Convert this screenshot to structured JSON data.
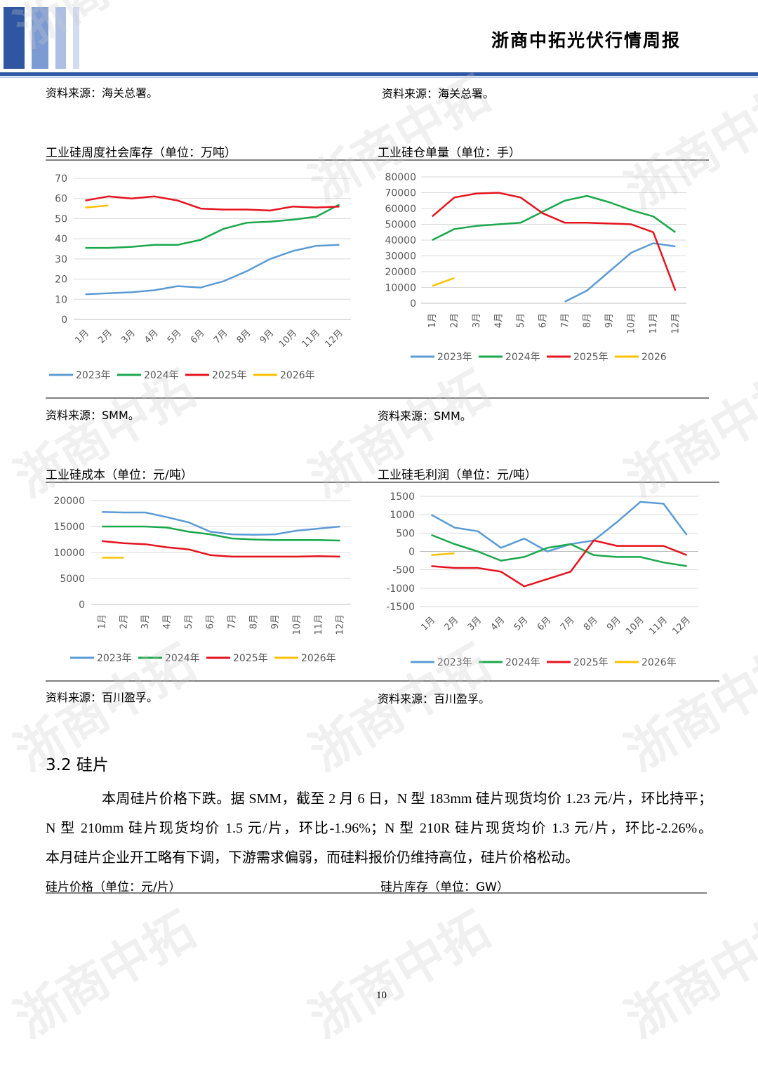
{
  "header": {
    "title": "浙商中拓光伏行情周报"
  },
  "watermark": "浙商中拓",
  "sources": [
    "资料来源：海关总署。",
    "资料来源：海关总署。",
    "资料来源：SMM。",
    "资料来源：SMM。",
    "资料来源：百川盈孚。",
    "资料来源：百川盈孚。"
  ],
  "chart_data": [
    {
      "type": "line",
      "title": "工业硅周度社会库存（单位：万吨）",
      "categories": [
        "1月",
        "2月",
        "3月",
        "4月",
        "5月",
        "6月",
        "7月",
        "8月",
        "9月",
        "10月",
        "11月",
        "12月"
      ],
      "series": [
        {
          "name": "2023年",
          "color": "#5b9bd5",
          "values": [
            12.5,
            13,
            13.5,
            14.5,
            16.5,
            15.8,
            19,
            24,
            30,
            34,
            36.5,
            37
          ]
        },
        {
          "name": "2024年",
          "color": "#1aa84b",
          "values": [
            35.5,
            35.5,
            36,
            37,
            37,
            39.5,
            45,
            48,
            48.5,
            49.5,
            51,
            57
          ]
        },
        {
          "name": "2025年",
          "color": "#e5131d",
          "values": [
            59,
            61,
            60,
            61,
            59,
            55,
            54.5,
            54.5,
            54,
            56,
            55.5,
            56
          ]
        },
        {
          "name": "2026年",
          "color": "#ffc000",
          "values": [
            55.5,
            56.5,
            null,
            null,
            null,
            null,
            null,
            null,
            null,
            null,
            null,
            null
          ]
        }
      ],
      "ylim": [
        0,
        70
      ],
      "yticks": [
        0,
        10,
        20,
        30,
        40,
        50,
        60,
        70
      ],
      "grid": true
    },
    {
      "type": "line",
      "title": "工业硅仓单量（单位：手）",
      "categories": [
        "1月",
        "2月",
        "3月",
        "4月",
        "5月",
        "6月",
        "7月",
        "8月",
        "9月",
        "10月",
        "11月",
        "12月"
      ],
      "series": [
        {
          "name": "2023年",
          "color": "#5b9bd5",
          "values": [
            null,
            null,
            null,
            null,
            null,
            null,
            1000,
            8000,
            20000,
            32000,
            38000,
            36000
          ]
        },
        {
          "name": "2024年",
          "color": "#1aa84b",
          "values": [
            40000,
            47000,
            49000,
            50000,
            51000,
            58000,
            65000,
            68000,
            64000,
            59000,
            55000,
            45000
          ]
        },
        {
          "name": "2025年",
          "color": "#e5131d",
          "values": [
            55000,
            67000,
            69500,
            70000,
            67000,
            57000,
            51000,
            51000,
            50500,
            50000,
            45000,
            8000
          ]
        },
        {
          "name": "2026",
          "color": "#ffc000",
          "values": [
            11000,
            16000,
            null,
            null,
            null,
            null,
            null,
            null,
            null,
            null,
            null,
            null
          ]
        }
      ],
      "ylim": [
        0,
        80000
      ],
      "yticks": [
        0,
        10000,
        20000,
        30000,
        40000,
        50000,
        60000,
        70000,
        80000
      ],
      "grid": true
    },
    {
      "type": "line",
      "title": "工业硅成本（单位：元/吨）",
      "categories": [
        "1月",
        "2月",
        "3月",
        "4月",
        "5月",
        "6月",
        "7月",
        "8月",
        "9月",
        "10月",
        "11月",
        "12月"
      ],
      "series": [
        {
          "name": "2023年",
          "color": "#5b9bd5",
          "values": [
            17800,
            17700,
            17700,
            16800,
            15800,
            14000,
            13500,
            13400,
            13500,
            14200,
            14600,
            15000
          ]
        },
        {
          "name": "2024年",
          "color": "#1aa84b",
          "values": [
            15000,
            15000,
            15000,
            14800,
            14000,
            13500,
            12700,
            12500,
            12400,
            12400,
            12400,
            12300
          ]
        },
        {
          "name": "2025年",
          "color": "#e5131d",
          "values": [
            12200,
            11800,
            11600,
            11000,
            10600,
            9500,
            9200,
            9200,
            9200,
            9200,
            9300,
            9200
          ]
        },
        {
          "name": "2026年",
          "color": "#ffc000",
          "values": [
            9000,
            9000,
            null,
            null,
            null,
            null,
            null,
            null,
            null,
            null,
            null,
            null
          ]
        }
      ],
      "ylim": [
        0,
        20000
      ],
      "yticks": [
        0,
        5000,
        10000,
        15000,
        20000
      ],
      "grid": true
    },
    {
      "type": "line",
      "title": "工业硅毛利润（单位：元/吨）",
      "categories": [
        "1月",
        "2月",
        "3月",
        "4月",
        "5月",
        "6月",
        "7月",
        "8月",
        "9月",
        "10月",
        "11月",
        "12月"
      ],
      "series": [
        {
          "name": "2023年",
          "color": "#5b9bd5",
          "values": [
            1000,
            650,
            550,
            100,
            350,
            0,
            200,
            300,
            800,
            1350,
            1300,
            450
          ]
        },
        {
          "name": "2024年",
          "color": "#1aa84b",
          "values": [
            450,
            200,
            0,
            -250,
            -150,
            100,
            200,
            -100,
            -150,
            -150,
            -300,
            -400
          ]
        },
        {
          "name": "2025年",
          "color": "#e5131d",
          "values": [
            -400,
            -450,
            -450,
            -550,
            -950,
            -750,
            -550,
            300,
            150,
            150,
            150,
            -100
          ]
        },
        {
          "name": "2026年",
          "color": "#ffc000",
          "values": [
            -100,
            -50,
            null,
            null,
            null,
            null,
            null,
            null,
            null,
            null,
            null,
            null
          ]
        }
      ],
      "ylim": [
        -1500,
        1500
      ],
      "yticks": [
        -1500,
        -1000,
        -500,
        0,
        500,
        1000,
        1500
      ],
      "grid": true
    }
  ],
  "section": {
    "heading": "3.2  硅片"
  },
  "paragraph": [
    "本周硅片价格下跌。据 SMM，截至 2 月 6 日，N 型 183mm 硅片现货均价 1.23 元/片，环比持平；",
    "N 型 210mm 硅片现货均价 1.5 元/片，环比-1.96%；N 型 210R 硅片现货均价 1.3 元/片，环比-2.26%。",
    "本月硅片企业开工略有下调，下游需求偏弱，而硅料报价仍维持高位，硅片价格松动。"
  ],
  "captions": [
    "硅片价格（单位：元/片）",
    "硅片库存（单位：GW）"
  ],
  "page_number": "10"
}
